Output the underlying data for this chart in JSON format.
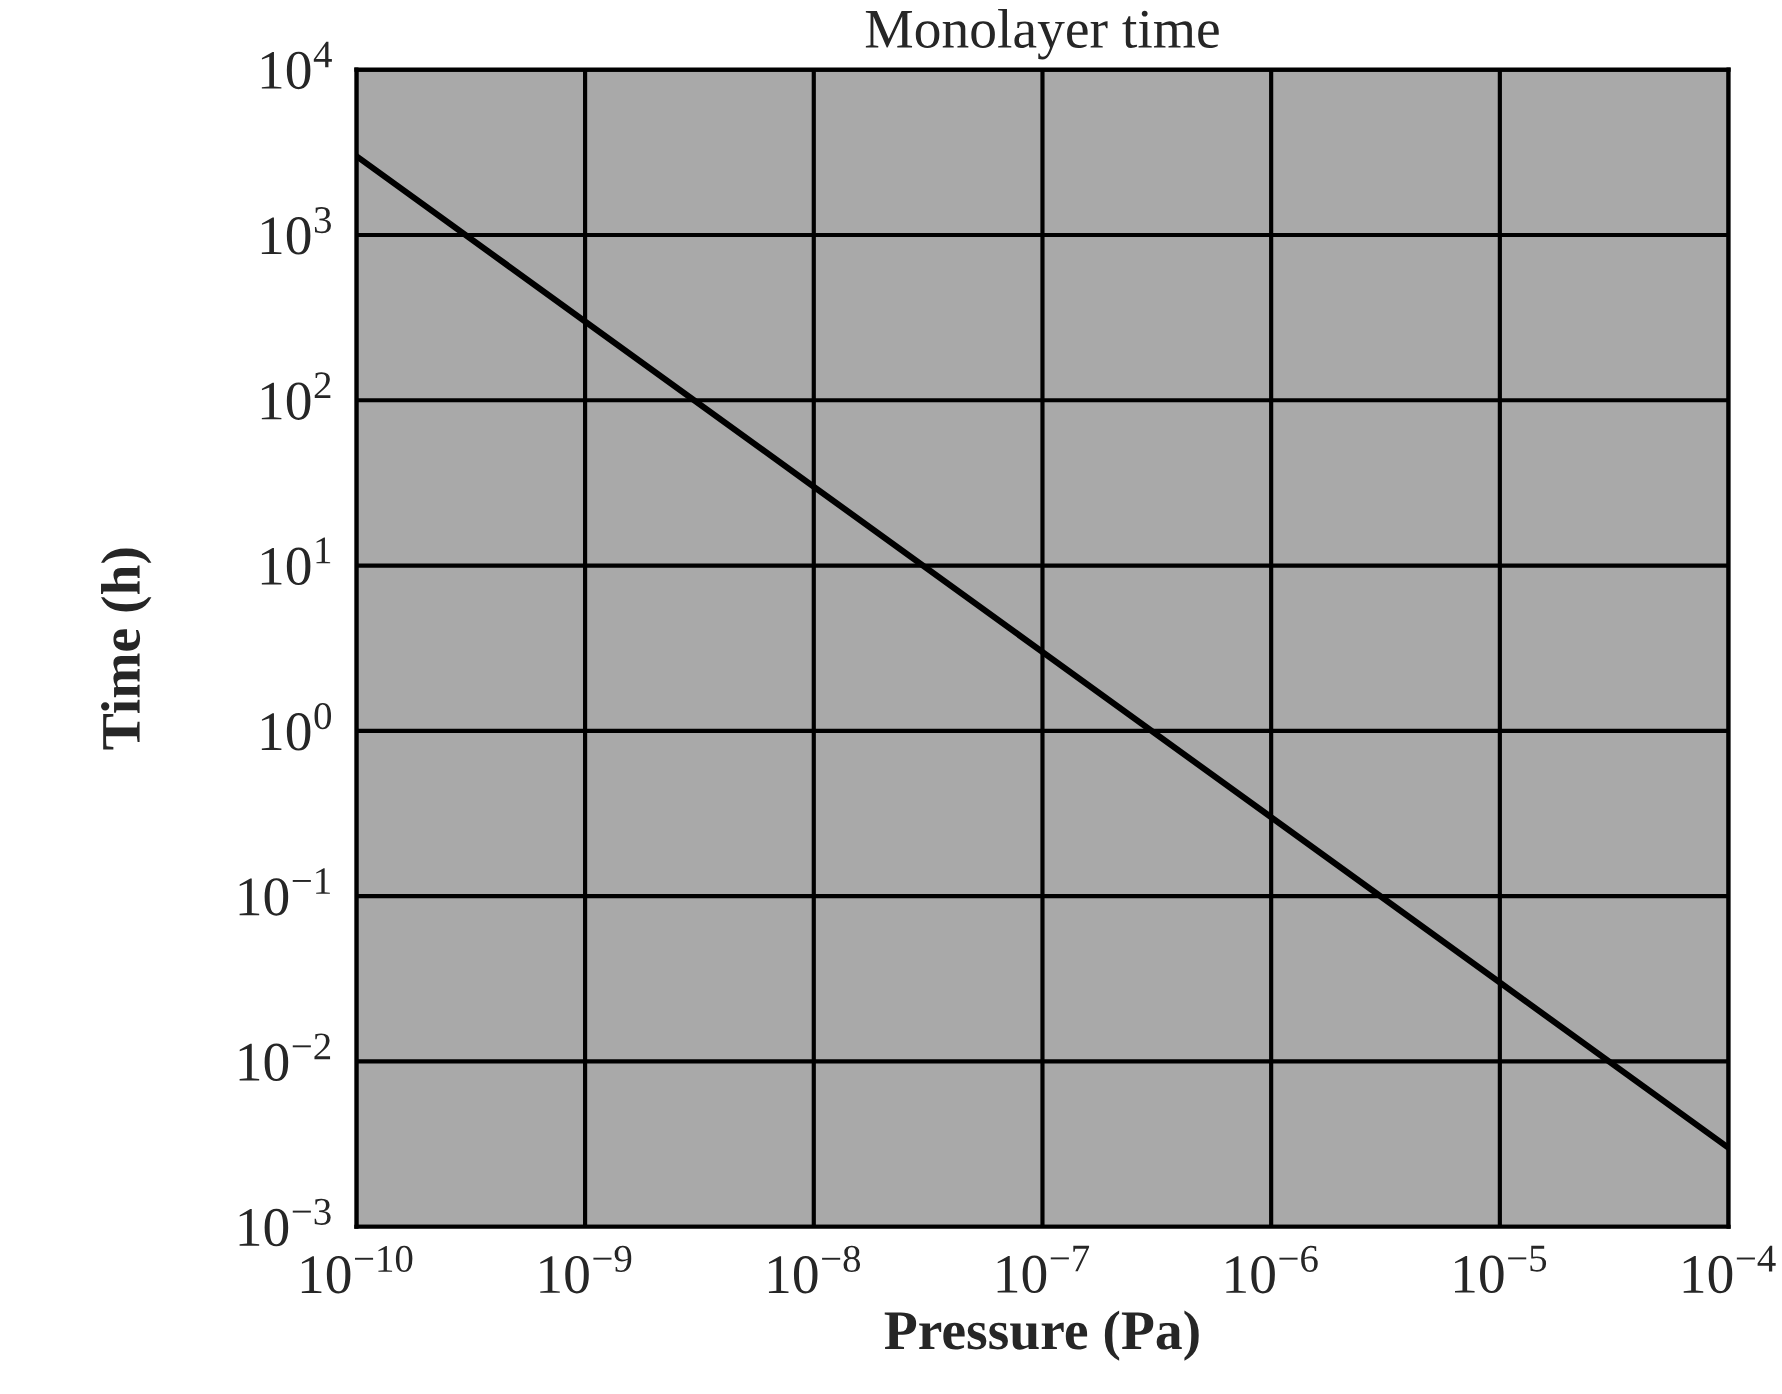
{
  "chart_data": {
    "type": "line",
    "title": "Monolayer time",
    "xlabel": "Pressure (Pa)",
    "ylabel": "Time (h)",
    "log": "xy",
    "grid": true,
    "marker": "none",
    "line_style": "solid",
    "x": [
      1e-10,
      1e-09,
      1e-08,
      1e-07,
      1e-06,
      1e-05,
      0.0001
    ],
    "series": [
      {
        "color": "#000000",
        "values": [
          3000,
          300,
          30,
          3,
          0.3,
          0.03,
          0.003
        ]
      }
    ],
    "xlim": [
      1e-10,
      0.0001
    ],
    "ylim": [
      0.001,
      10000
    ],
    "xticks": [
      {
        "value": 1e-10,
        "label": "10$^{−10}$"
      },
      {
        "value": 1e-09,
        "label": "10$^{−9}$"
      },
      {
        "value": 1e-08,
        "label": "10$^{−8}$"
      },
      {
        "value": 1e-07,
        "label": "10$^{−7}$"
      },
      {
        "value": 1e-06,
        "label": "10$^{−6}$"
      },
      {
        "value": 1e-05,
        "label": "10$^{−5}$"
      },
      {
        "value": 0.0001,
        "label": "10$^{−4}$"
      }
    ],
    "yticks": [
      {
        "value": 0.001,
        "label": "10$^{−3}$"
      },
      {
        "value": 0.01,
        "label": "10$^{−2}$"
      },
      {
        "value": 0.1,
        "label": "10$^{−1}$"
      },
      {
        "value": 1,
        "label": "10$^{0}$"
      },
      {
        "value": 10,
        "label": "10$^{1}$"
      },
      {
        "value": 100,
        "label": "10$^{2}$"
      },
      {
        "value": 1000,
        "label": "10$^{3}$"
      },
      {
        "value": 10000,
        "label": "10$^{4}$"
      }
    ]
  }
}
